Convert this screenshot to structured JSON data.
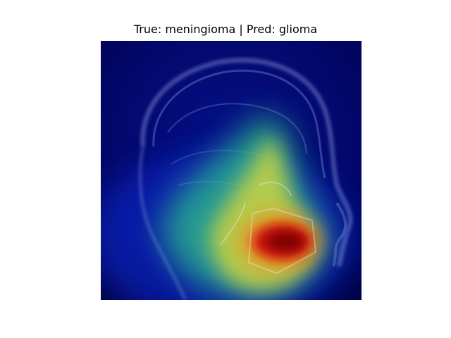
{
  "figure": {
    "title": "True: meningioma | Pred: glioma",
    "true_label": "meningioma",
    "pred_label": "glioma",
    "colors": {
      "background": "#ffffff",
      "colormap_low": "#00004d",
      "colormap_mid": "#1fb0a0",
      "colormap_high": "#8b0000"
    }
  }
}
